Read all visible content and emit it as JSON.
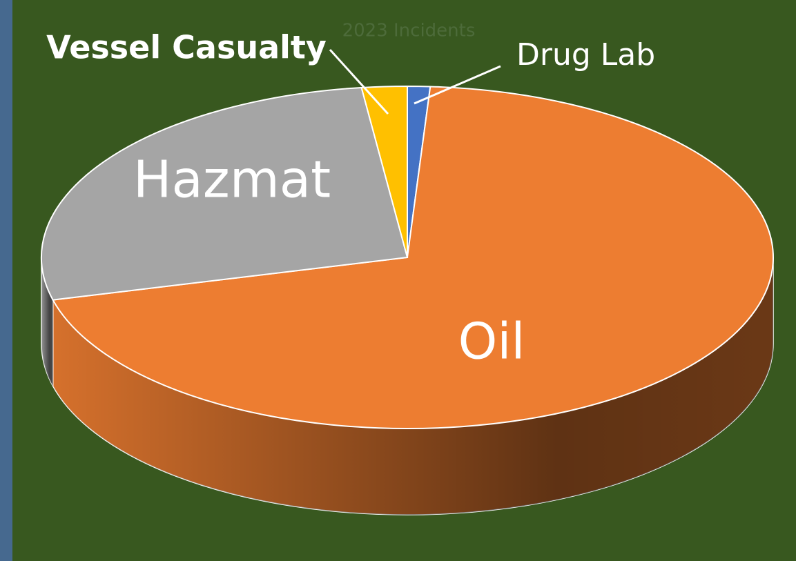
{
  "chart_data": {
    "type": "pie",
    "title": "2023 Incidents",
    "categories": [
      "Drug Lab",
      "Oil",
      "Hazmat",
      "Vessel Casualty"
    ],
    "values": [
      1,
      70,
      27,
      2
    ],
    "colors": [
      "#4472c4",
      "#ed7d31",
      "#a5a5a5",
      "#ffc000"
    ]
  }
}
